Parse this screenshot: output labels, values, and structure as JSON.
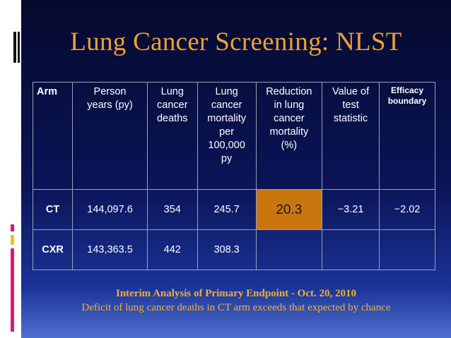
{
  "title": "Lung Cancer Screening: NLST",
  "table": {
    "headers": [
      [
        "Arm"
      ],
      [
        "Person",
        "years (py)"
      ],
      [
        "Lung",
        "cancer",
        "deaths"
      ],
      [
        "Lung",
        "cancer",
        "mortality",
        "per",
        "100,000",
        "py"
      ],
      [
        "Reduction",
        "in lung",
        "cancer",
        "mortality",
        "(%)"
      ],
      [
        "Value of",
        "test",
        "statistic"
      ],
      [
        "Efficacy",
        "boundary"
      ]
    ],
    "rows": [
      [
        "CT",
        "144,097.6",
        "354",
        "245.7",
        "20.3",
        "−3.21",
        "−2.02"
      ],
      [
        "CXR",
        "143,363.5",
        "442",
        "308.3",
        "",
        "",
        ""
      ]
    ]
  },
  "footer": {
    "line1": "Interim Analysis of Primary Endpoint - Oct. 20, 2010",
    "line2": "Deficit of lung cancer deaths in CT arm exceeds that expected by chance"
  },
  "colors": {
    "title": "#f0a030",
    "highlight_cell": "#c9760e",
    "background_top": "#050a2e",
    "background_bottom": "#4f6fd0"
  }
}
